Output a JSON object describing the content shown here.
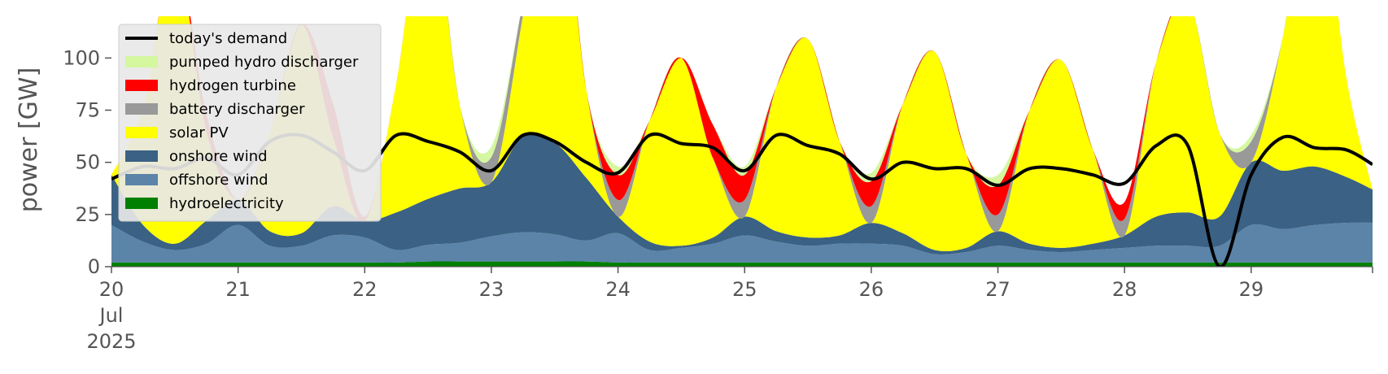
{
  "chart_data": {
    "type": "area",
    "title": "",
    "ylabel": "power [GW]",
    "xlabel": "",
    "ylim": [
      0,
      120
    ],
    "xlim": [
      "2025-07-20T00:00",
      "2025-07-29T23:00"
    ],
    "y_ticks": [
      0,
      25,
      50,
      75,
      100
    ],
    "x_ticks": [
      {
        "t": "2025-07-20T00:00",
        "label": "20",
        "sub": [
          "Jul",
          "2025"
        ]
      },
      {
        "t": "2025-07-21T00:00",
        "label": "21"
      },
      {
        "t": "2025-07-22T00:00",
        "label": "22"
      },
      {
        "t": "2025-07-23T00:00",
        "label": "23"
      },
      {
        "t": "2025-07-24T00:00",
        "label": "24"
      },
      {
        "t": "2025-07-25T00:00",
        "label": "25"
      },
      {
        "t": "2025-07-26T00:00",
        "label": "26"
      },
      {
        "t": "2025-07-27T00:00",
        "label": "27"
      },
      {
        "t": "2025-07-28T00:00",
        "label": "28"
      },
      {
        "t": "2025-07-29T00:00",
        "label": "29"
      }
    ],
    "grid": false,
    "legend": "top-left",
    "x": [
      "2025-07-20T00:00",
      "2025-07-20T06:00",
      "2025-07-20T12:00",
      "2025-07-20T18:00",
      "2025-07-21T00:00",
      "2025-07-21T06:00",
      "2025-07-21T12:00",
      "2025-07-21T18:00",
      "2025-07-22T00:00",
      "2025-07-22T06:00",
      "2025-07-22T12:00",
      "2025-07-22T18:00",
      "2025-07-23T00:00",
      "2025-07-23T06:00",
      "2025-07-23T12:00",
      "2025-07-23T18:00",
      "2025-07-24T00:00",
      "2025-07-24T06:00",
      "2025-07-24T12:00",
      "2025-07-24T18:00",
      "2025-07-25T00:00",
      "2025-07-25T06:00",
      "2025-07-25T12:00",
      "2025-07-25T18:00",
      "2025-07-26T00:00",
      "2025-07-26T06:00",
      "2025-07-26T12:00",
      "2025-07-26T18:00",
      "2025-07-27T00:00",
      "2025-07-27T06:00",
      "2025-07-27T12:00",
      "2025-07-27T18:00",
      "2025-07-28T00:00",
      "2025-07-28T06:00",
      "2025-07-28T12:00",
      "2025-07-28T18:00",
      "2025-07-29T00:00",
      "2025-07-29T06:00",
      "2025-07-29T12:00",
      "2025-07-29T18:00",
      "2025-07-29T23:00"
    ],
    "series": [
      {
        "name": "hydroelectricity",
        "color": "#008000",
        "values": [
          2,
          2,
          2,
          2,
          2,
          2,
          2,
          2,
          2,
          2,
          2.5,
          2.5,
          2.5,
          2.5,
          2.5,
          2.5,
          2,
          2,
          2,
          2,
          2,
          2,
          2,
          2,
          2,
          2,
          2,
          2,
          2,
          2,
          2,
          2,
          2,
          2,
          2,
          2,
          2,
          2,
          2,
          2,
          2
        ]
      },
      {
        "name": "offshore wind",
        "color": "#5b84a8",
        "values": [
          18,
          10,
          6,
          9,
          18,
          8,
          8,
          13,
          12,
          6,
          8,
          9,
          12,
          14,
          13,
          10,
          14,
          6,
          7,
          9,
          13,
          10,
          8,
          9,
          9,
          8,
          4,
          5,
          8,
          6,
          5,
          6,
          7,
          8,
          8,
          8,
          18,
          16,
          18,
          19,
          19
        ]
      },
      {
        "name": "onshore wind",
        "color": "#3b6184",
        "values": [
          24,
          8,
          3,
          11,
          12,
          7,
          6,
          14,
          8,
          18,
          22,
          26,
          26,
          46,
          44,
          30,
          8,
          4,
          1,
          3,
          9,
          5,
          4,
          4,
          10,
          6,
          2,
          2,
          7,
          3,
          2,
          3,
          6,
          14,
          16,
          14,
          30,
          28,
          28,
          22,
          16
        ]
      },
      {
        "name": "solar PV",
        "color": "#ffff00",
        "values": [
          0,
          56,
          140,
          43,
          0,
          47,
          100,
          33,
          0,
          62,
          150,
          40,
          0,
          58,
          150,
          42,
          0,
          58,
          90,
          38,
          0,
          69,
          95,
          45,
          0,
          62,
          95,
          45,
          0,
          64,
          90,
          45,
          0,
          74,
          102,
          40,
          0,
          64,
          150,
          48,
          0
        ]
      },
      {
        "name": "battery discharger",
        "color": "#999999",
        "values": [
          0,
          0,
          0,
          0,
          0,
          0,
          0,
          0,
          0,
          0,
          0,
          0,
          12,
          7,
          0,
          0,
          8,
          0,
          0,
          0,
          8,
          0,
          0,
          0,
          8,
          0,
          0,
          0,
          8,
          0,
          0,
          0,
          8,
          0,
          0,
          0,
          10,
          0,
          0,
          0,
          0
        ]
      },
      {
        "name": "hydrogen turbine",
        "color": "#ff0000",
        "values": [
          0,
          0,
          0,
          8,
          0,
          0,
          0,
          16,
          2,
          0,
          0,
          0,
          0,
          0,
          0,
          0,
          12,
          0,
          0,
          16,
          12,
          0,
          0,
          0,
          12,
          0,
          0,
          0,
          14,
          0,
          0,
          0,
          8,
          0,
          0,
          0,
          0,
          0,
          0,
          0,
          0
        ]
      },
      {
        "name": "pumped hydro discharger",
        "color": "#d4f7a0",
        "values": [
          0,
          0,
          0,
          0,
          0,
          0,
          0,
          0,
          0,
          0,
          0,
          0,
          5,
          0,
          0,
          0,
          4,
          0,
          0,
          0,
          4,
          0,
          0,
          0,
          4,
          0,
          0,
          0,
          5,
          0,
          0,
          0,
          0,
          0,
          0,
          0,
          3,
          0,
          0,
          0,
          0
        ]
      }
    ],
    "demand": {
      "name": "today's demand",
      "color": "#000000",
      "values": [
        42,
        48,
        47,
        52,
        44,
        60,
        63,
        55,
        46,
        63,
        60,
        55,
        46,
        63,
        60,
        50,
        45,
        63,
        59,
        57,
        46,
        63,
        58,
        54,
        42,
        50,
        47,
        47,
        39,
        47,
        47,
        44,
        40,
        58,
        58,
        0,
        44,
        62,
        57,
        56,
        49
      ]
    },
    "legend_entries": [
      {
        "label": "today's demand",
        "color": "#000000",
        "kind": "line"
      },
      {
        "label": "pumped hydro discharger",
        "color": "#d4f7a0",
        "kind": "patch"
      },
      {
        "label": "hydrogen turbine",
        "color": "#ff0000",
        "kind": "patch"
      },
      {
        "label": "battery discharger",
        "color": "#999999",
        "kind": "patch"
      },
      {
        "label": "solar PV",
        "color": "#ffff00",
        "kind": "patch"
      },
      {
        "label": "onshore wind",
        "color": "#3b6184",
        "kind": "patch"
      },
      {
        "label": "offshore wind",
        "color": "#5b84a8",
        "kind": "patch"
      },
      {
        "label": "hydroelectricity",
        "color": "#008000",
        "kind": "patch"
      }
    ]
  }
}
